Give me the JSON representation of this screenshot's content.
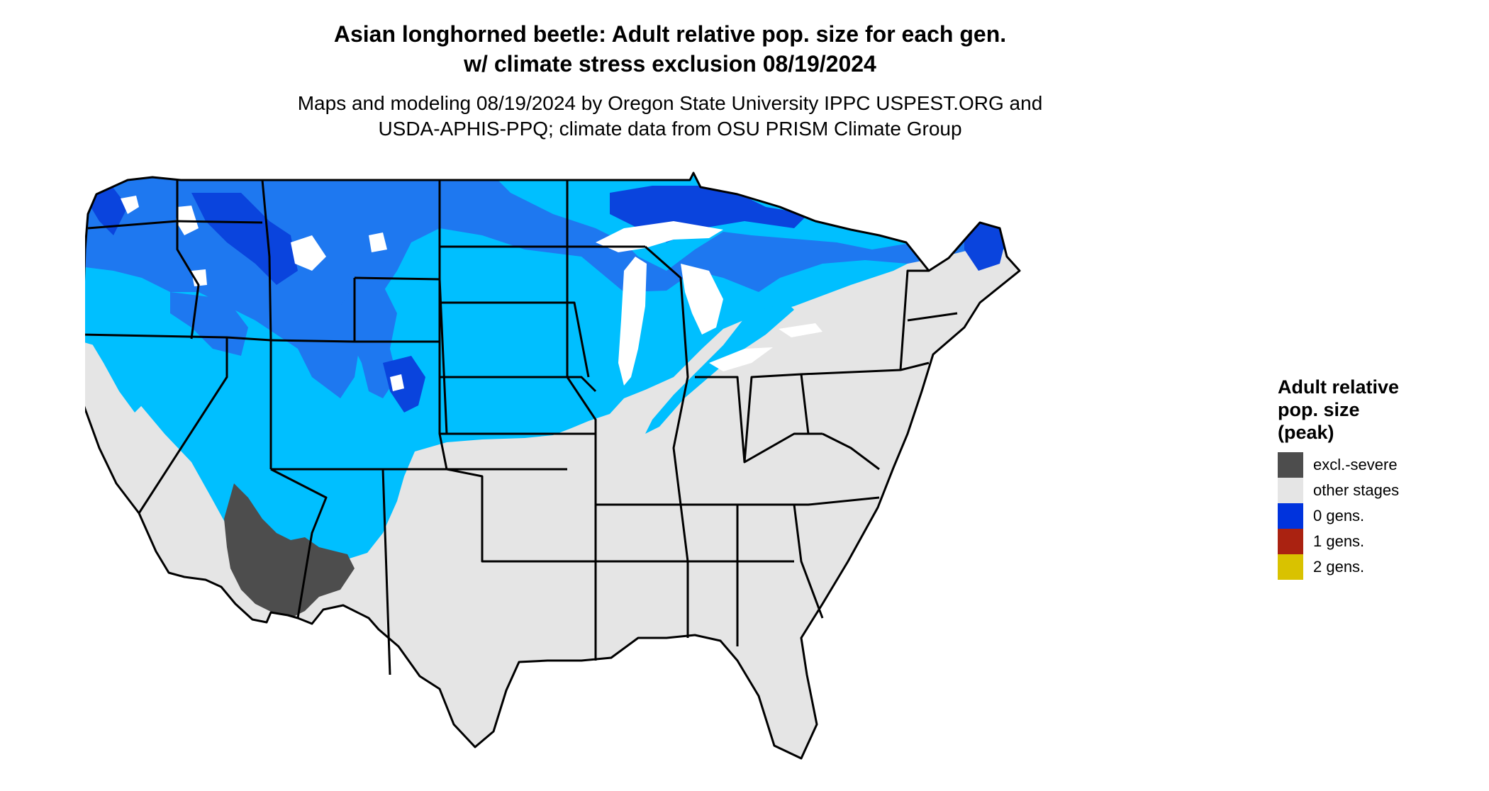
{
  "title": {
    "line1": "Asian longhorned beetle: Adult relative pop. size for each gen.",
    "line2": "w/ climate stress exclusion 08/19/2024"
  },
  "subtitle": {
    "line1": "Maps and modeling 08/19/2024 by Oregon State University IPPC USPEST.ORG and",
    "line2": "USDA-APHIS-PPQ; climate data from OSU PRISM Climate Group"
  },
  "legend": {
    "title_lines": [
      "Adult relative",
      "pop. size",
      "(peak)"
    ],
    "items": [
      {
        "label": "excl.-severe",
        "color": "#4d4d4d"
      },
      {
        "label": "other stages",
        "color": "#e5e5e5"
      },
      {
        "label": "0 gens.",
        "color": "#0033dd"
      },
      {
        "label": "1 gens.",
        "color": "#aa2211"
      },
      {
        "label": "2 gens.",
        "color": "#d9c200"
      }
    ]
  },
  "map": {
    "colors": {
      "other_stages": "#e5e5e5",
      "zero_gens_light": "#00bfff",
      "zero_gens_mid": "#1e78f0",
      "zero_gens_dark": "#0a44dd",
      "excl_severe": "#4d4d4d",
      "one_gen": "#e8400e",
      "high_elev": "#ffffff",
      "border": "#000000"
    }
  }
}
